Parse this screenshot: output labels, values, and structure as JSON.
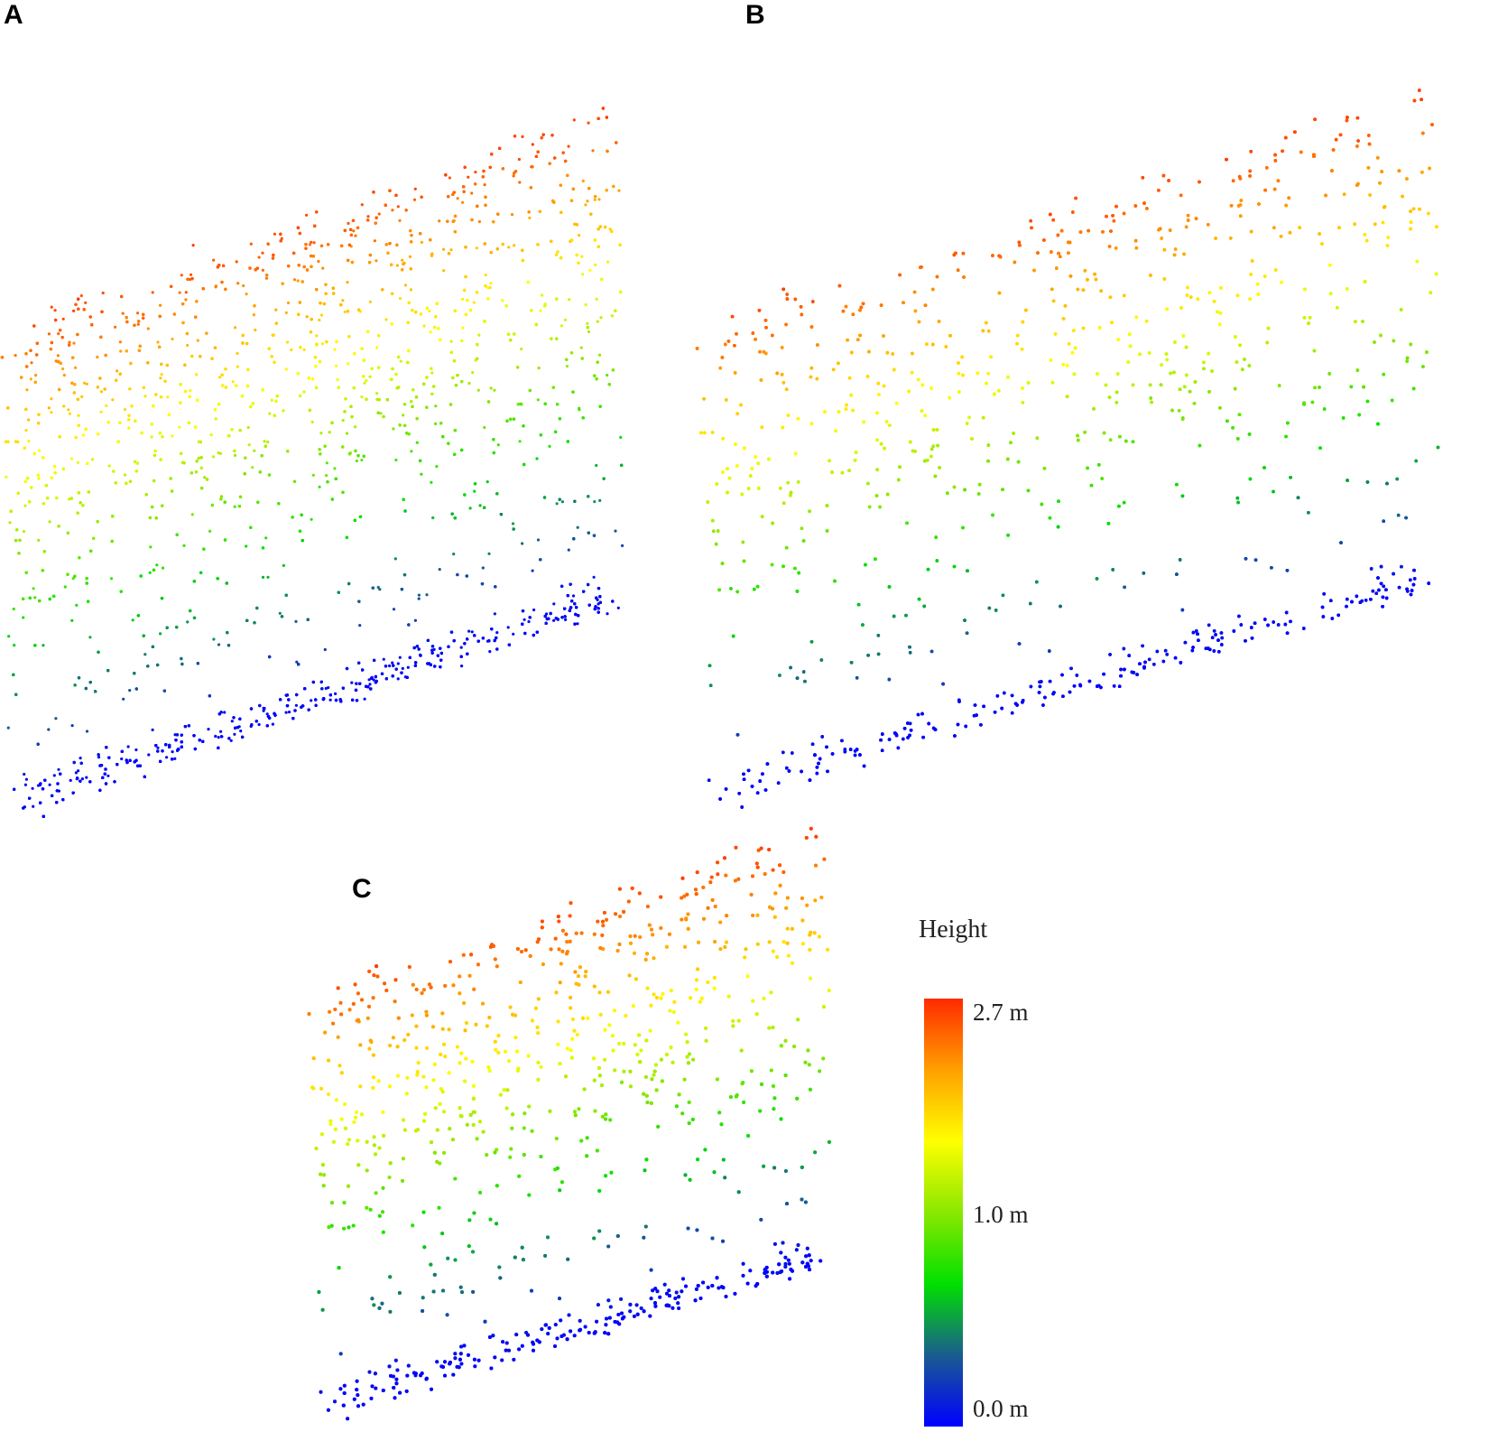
{
  "panels": [
    {
      "label": "A"
    },
    {
      "label": "B"
    },
    {
      "label": "C"
    }
  ],
  "legend": {
    "title": "Height",
    "ticks": [
      "2.7 m",
      "1.0 m",
      "0.0 m"
    ],
    "range_m": [
      0.0,
      2.7
    ],
    "colormap": [
      "#0000ff",
      "#1a5c8f",
      "#00e000",
      "#8ae800",
      "#ffff00",
      "#ffa000",
      "#ff2a00"
    ]
  },
  "chart_data": [
    {
      "type": "scatter",
      "panel": "A",
      "description_of_encoding": null,
      "color_variable": "Height",
      "z_range": [
        0.0,
        2.7
      ],
      "density": "high"
    },
    {
      "type": "scatter",
      "panel": "B",
      "color_variable": "Height",
      "z_range": [
        0.0,
        2.7
      ],
      "density": "medium"
    },
    {
      "type": "scatter",
      "panel": "C",
      "color_variable": "Height",
      "z_range": [
        0.0,
        2.7
      ],
      "density": "low"
    }
  ]
}
